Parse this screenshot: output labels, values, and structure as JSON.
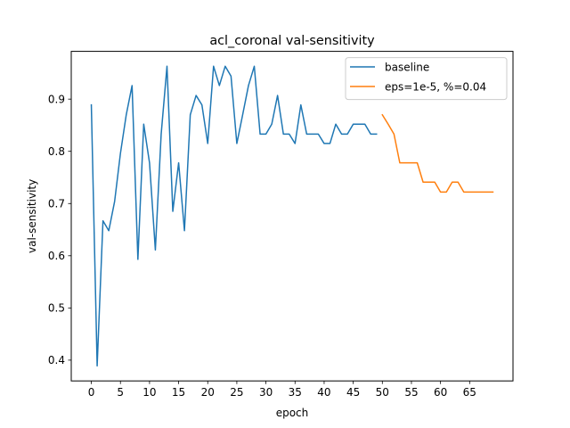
{
  "chart_data": {
    "type": "line",
    "title": "acl_coronal val-sensitivity",
    "xlabel": "epoch",
    "ylabel": "val-sensitivity",
    "xlim": [
      -3.45,
      72.45
    ],
    "ylim": [
      0.3602,
      0.9915
    ],
    "xticks": [
      0,
      5,
      10,
      15,
      20,
      25,
      30,
      35,
      40,
      45,
      50,
      55,
      60,
      65
    ],
    "yticks": [
      0.4,
      0.5,
      0.6,
      0.7,
      0.8,
      0.9
    ],
    "ytick_labels": [
      "0.4",
      "0.5",
      "0.6",
      "0.7",
      "0.8",
      "0.9"
    ],
    "grid": false,
    "legend_position": "top-right",
    "series": [
      {
        "name": "baseline",
        "color": "#1f77b4",
        "x": [
          0,
          1,
          2,
          3,
          4,
          5,
          6,
          7,
          8,
          9,
          10,
          11,
          12,
          13,
          14,
          15,
          16,
          17,
          18,
          19,
          20,
          21,
          22,
          23,
          24,
          25,
          26,
          27,
          28,
          29,
          30,
          31,
          32,
          33,
          34,
          35,
          36,
          37,
          38,
          39,
          40,
          41,
          42,
          43,
          44,
          45,
          46,
          47,
          48,
          49
        ],
        "values": [
          0.889,
          0.389,
          0.667,
          0.648,
          0.704,
          0.796,
          0.87,
          0.926,
          0.593,
          0.852,
          0.778,
          0.611,
          0.833,
          0.963,
          0.685,
          0.778,
          0.648,
          0.87,
          0.907,
          0.889,
          0.815,
          0.963,
          0.926,
          0.963,
          0.944,
          0.815,
          0.87,
          0.926,
          0.963,
          0.833,
          0.833,
          0.852,
          0.907,
          0.833,
          0.833,
          0.815,
          0.889,
          0.833,
          0.833,
          0.833,
          0.815,
          0.815,
          0.852,
          0.833,
          0.833,
          0.852,
          0.852,
          0.852,
          0.833,
          0.833
        ]
      },
      {
        "name": "eps=1e-5, %=0.04",
        "color": "#ff7f0e",
        "x": [
          50,
          51,
          52,
          53,
          54,
          55,
          56,
          57,
          58,
          59,
          60,
          61,
          62,
          63,
          64,
          65,
          66,
          67,
          68,
          69
        ],
        "values": [
          0.87,
          0.852,
          0.833,
          0.778,
          0.778,
          0.778,
          0.778,
          0.741,
          0.741,
          0.741,
          0.722,
          0.722,
          0.741,
          0.741,
          0.722,
          0.722,
          0.722,
          0.722,
          0.722,
          0.722
        ]
      }
    ]
  }
}
